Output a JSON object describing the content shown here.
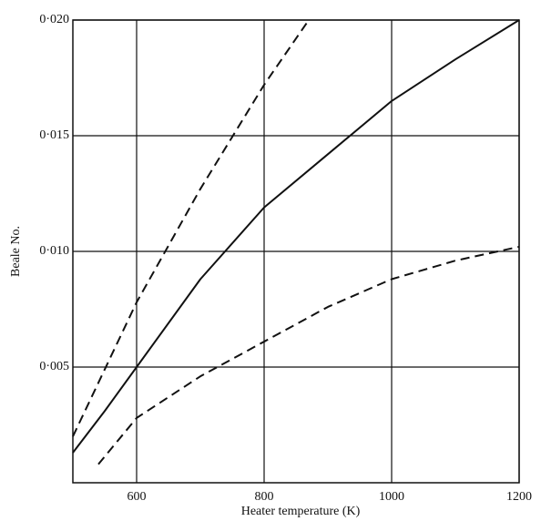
{
  "chart_data": {
    "type": "line",
    "x_label": "Heater temperature (K)",
    "y_label": "Beale No.",
    "xlim": [
      500,
      1200
    ],
    "ylim": [
      0,
      0.02
    ],
    "xticks": [
      600,
      800,
      1000,
      1200
    ],
    "yticks": [
      {
        "value": 0.005,
        "label": "0·005"
      },
      {
        "value": 0.01,
        "label": "0·010"
      },
      {
        "value": 0.015,
        "label": "0·015"
      },
      {
        "value": 0.02,
        "label": "0·020"
      }
    ],
    "grid": true,
    "series": [
      {
        "color": "#111111",
        "dash": "solid",
        "x": [
          500,
          550,
          600,
          700,
          800,
          900,
          1000,
          1100,
          1200
        ],
        "values": [
          0.0013,
          0.0031,
          0.005,
          0.0088,
          0.0119,
          0.0142,
          0.0165,
          0.0183,
          0.02
        ]
      },
      {
        "color": "#111111",
        "dash": "dashed",
        "x": [
          500,
          550,
          600,
          700,
          800,
          870
        ],
        "values": [
          0.002,
          0.0049,
          0.0078,
          0.0127,
          0.0172,
          0.02
        ]
      },
      {
        "color": "#111111",
        "dash": "dashed",
        "x": [
          540,
          600,
          700,
          800,
          900,
          1000,
          1100,
          1200
        ],
        "values": [
          0.0008,
          0.0028,
          0.0046,
          0.0061,
          0.0076,
          0.0088,
          0.0096,
          0.0102
        ]
      }
    ]
  }
}
